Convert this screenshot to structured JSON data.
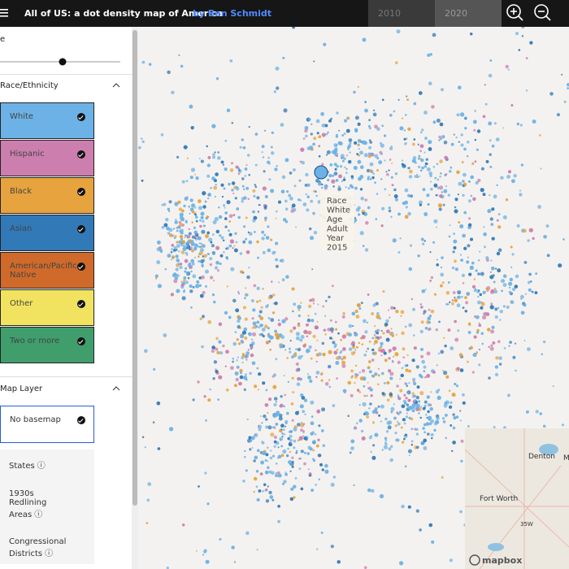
{
  "header": {
    "title": "All of US: a dot density map of America",
    "author": "by Ben Schmidt",
    "years": [
      "2010",
      "2020"
    ]
  },
  "sidebar": {
    "slider_label": "e",
    "race_section": {
      "title": "Race/Ethnicity",
      "items": [
        {
          "label": "White",
          "color": "#6cb2e6"
        },
        {
          "label": "Hispanic",
          "color": "#cc7eae"
        },
        {
          "label": "Black",
          "color": "#e6a33e"
        },
        {
          "label": "Asian",
          "color": "#3279b8"
        },
        {
          "label": "American/Pacific Native",
          "color": "#cf6a2a"
        },
        {
          "label": "Other",
          "color": "#f1e35f"
        },
        {
          "label": "Two or more",
          "color": "#3f9e6c"
        }
      ]
    },
    "layer_section": {
      "title": "Map Layer",
      "items": [
        "No basemap",
        "States",
        "1930s Redlining Areas",
        "Congressional Districts"
      ]
    }
  },
  "tooltip": {
    "rows": [
      [
        "Race",
        "White"
      ],
      [
        "Age",
        "Adult"
      ],
      [
        "Year",
        "2015"
      ]
    ]
  },
  "minimap": {
    "labels": [
      "Denton",
      "M",
      "Fort Worth",
      "35W"
    ],
    "attribution": "mapbox"
  }
}
